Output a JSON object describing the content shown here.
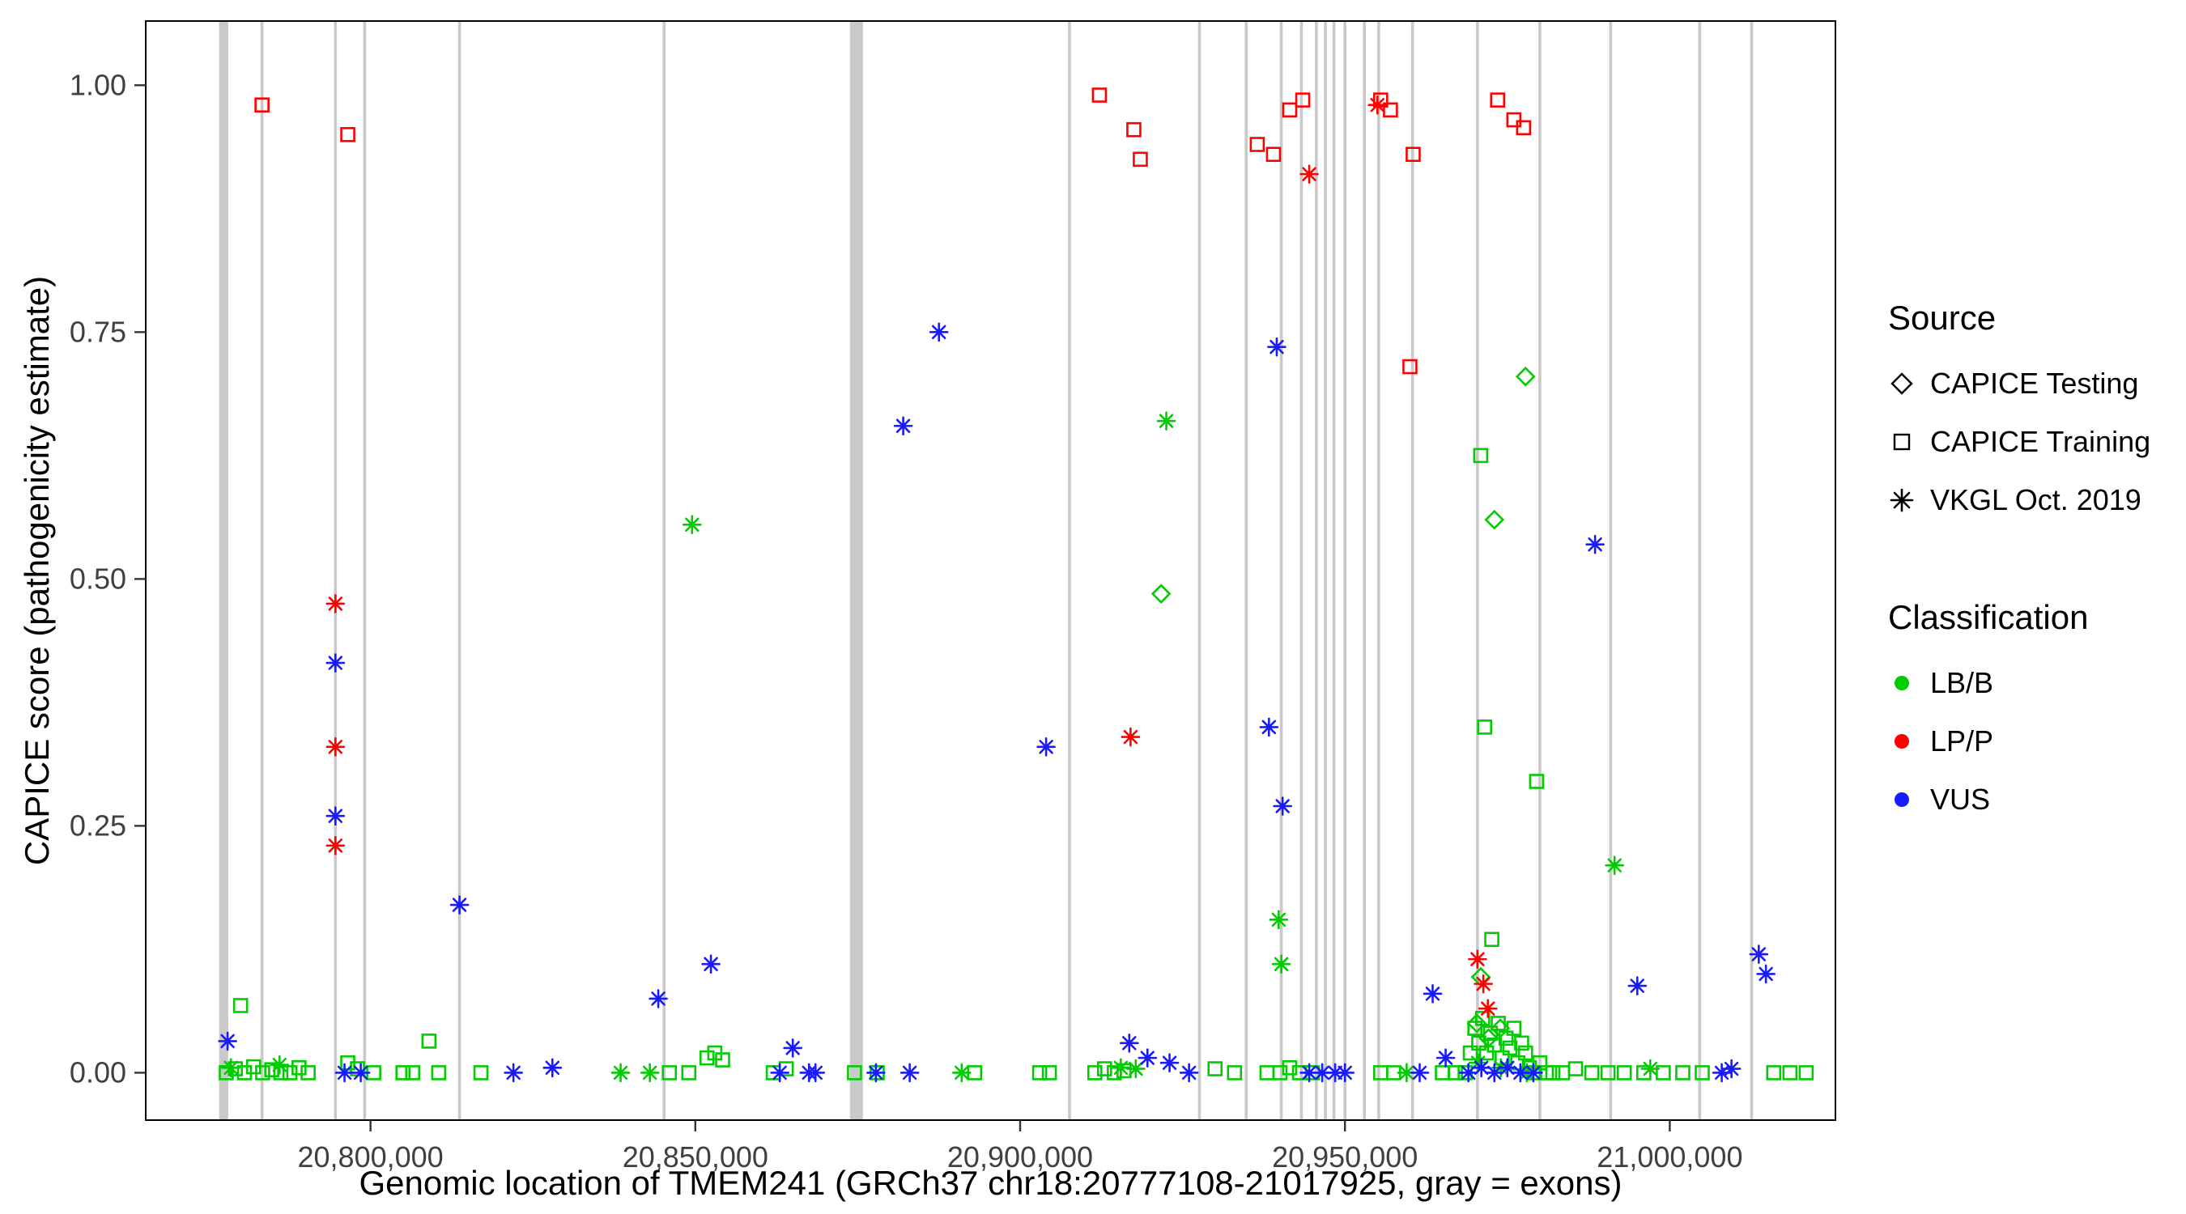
{
  "chart_data": {
    "type": "scatter",
    "title": "",
    "xlabel": "Genomic location of TMEM241 (GRCh37 chr18:20777108-21017925, gray = exons)",
    "ylabel": "CAPICE score (pathogenicity estimate)",
    "xlim": [
      20765400,
      21025500
    ],
    "ylim": [
      -0.048,
      1.065
    ],
    "grid": "off",
    "x_ticks": [
      {
        "v": 20800000,
        "label": "20,800,000"
      },
      {
        "v": 20850000,
        "label": "20,850,000"
      },
      {
        "v": 20900000,
        "label": "20,900,000"
      },
      {
        "v": 20950000,
        "label": "20,950,000"
      },
      {
        "v": 21000000,
        "label": "21,000,000"
      }
    ],
    "y_ticks": [
      {
        "v": 0.0,
        "label": "0.00"
      },
      {
        "v": 0.25,
        "label": "0.25"
      },
      {
        "v": 0.5,
        "label": "0.50"
      },
      {
        "v": 0.75,
        "label": "0.75"
      },
      {
        "v": 1.0,
        "label": "1.00"
      }
    ],
    "exon_color": "#C9C9C9",
    "exons": [
      [
        20777400,
        1400
      ],
      [
        20874800,
        2000
      ],
      [
        20783300,
        450
      ],
      [
        20794600,
        450
      ],
      [
        20799100,
        450
      ],
      [
        20813700,
        450
      ],
      [
        20845200,
        450
      ],
      [
        20907600,
        450
      ],
      [
        20927600,
        450
      ],
      [
        20934800,
        450
      ],
      [
        20940200,
        450
      ],
      [
        20943300,
        450
      ],
      [
        20945600,
        450
      ],
      [
        20947000,
        450
      ],
      [
        20948300,
        450
      ],
      [
        20950000,
        450
      ],
      [
        20953000,
        450
      ],
      [
        20955200,
        450
      ],
      [
        20960400,
        450
      ],
      [
        20970400,
        450
      ],
      [
        20980000,
        450
      ],
      [
        20990900,
        450
      ],
      [
        21004600,
        450
      ],
      [
        21012600,
        450
      ]
    ],
    "series": [
      {
        "name": "CAPICE Testing / LB/B",
        "source": "CAPICE Testing",
        "classification": "LB/B",
        "shape": "diamond",
        "color": "#00CC00",
        "points": [
          [
            20921700,
            0.485
          ],
          [
            20973000,
            0.56
          ],
          [
            20977800,
            0.705
          ],
          [
            20970900,
            0.097
          ],
          [
            20970300,
            0.05
          ],
          [
            20972100,
            0.035
          ],
          [
            20973900,
            0.045
          ]
        ]
      },
      {
        "name": "CAPICE Training / LB/B",
        "source": "CAPICE Training",
        "classification": "LB/B",
        "shape": "square",
        "color": "#00CC00",
        "points": [
          [
            20780000,
            0.068
          ],
          [
            20809000,
            0.032
          ],
          [
            20970900,
            0.625
          ],
          [
            20971500,
            0.35
          ],
          [
            20979500,
            0.295
          ],
          [
            20972600,
            0.135
          ],
          [
            20777800,
            0.0
          ],
          [
            20779200,
            0.004
          ],
          [
            20780600,
            0.0
          ],
          [
            20782000,
            0.006
          ],
          [
            20783400,
            0.0
          ],
          [
            20784800,
            0.003
          ],
          [
            20786200,
            0.0
          ],
          [
            20787600,
            0.0
          ],
          [
            20789000,
            0.005
          ],
          [
            20790400,
            0.0
          ],
          [
            20796500,
            0.01
          ],
          [
            20798000,
            0.004
          ],
          [
            20800500,
            0.0
          ],
          [
            20805000,
            0.0
          ],
          [
            20806500,
            0.0
          ],
          [
            20810500,
            0.0
          ],
          [
            20817000,
            0.0
          ],
          [
            20846000,
            0.0
          ],
          [
            20849000,
            0.0
          ],
          [
            20851800,
            0.015
          ],
          [
            20853000,
            0.02
          ],
          [
            20854200,
            0.013
          ],
          [
            20862000,
            0.0
          ],
          [
            20864000,
            0.004
          ],
          [
            20874500,
            0.0
          ],
          [
            20878000,
            0.0
          ],
          [
            20893000,
            0.0
          ],
          [
            20903000,
            0.0
          ],
          [
            20904500,
            0.0
          ],
          [
            20911500,
            0.0
          ],
          [
            20913000,
            0.004
          ],
          [
            20914500,
            0.0
          ],
          [
            20916000,
            0.002
          ],
          [
            20930000,
            0.004
          ],
          [
            20933000,
            0.0
          ],
          [
            20938000,
            0.0
          ],
          [
            20940000,
            0.0
          ],
          [
            20941500,
            0.005
          ],
          [
            20943000,
            0.0
          ],
          [
            20945000,
            0.0
          ],
          [
            20955500,
            0.0
          ],
          [
            20957500,
            0.0
          ],
          [
            20965000,
            0.0
          ],
          [
            20967000,
            0.0
          ],
          [
            20968500,
            0.0
          ],
          [
            20969300,
            0.02
          ],
          [
            20970000,
            0.045
          ],
          [
            20970600,
            0.03
          ],
          [
            20971200,
            0.055
          ],
          [
            20971800,
            0.02
          ],
          [
            20972400,
            0.04
          ],
          [
            20973000,
            0.028
          ],
          [
            20973600,
            0.05
          ],
          [
            20974200,
            0.015
          ],
          [
            20974800,
            0.035
          ],
          [
            20975400,
            0.025
          ],
          [
            20976000,
            0.045
          ],
          [
            20976600,
            0.01
          ],
          [
            20977200,
            0.03
          ],
          [
            20977800,
            0.02
          ],
          [
            20978400,
            0.005
          ],
          [
            20979200,
            0.0
          ],
          [
            20980000,
            0.01
          ],
          [
            20981000,
            0.0
          ],
          [
            20982000,
            0.0
          ],
          [
            20983500,
            0.0
          ],
          [
            20985500,
            0.004
          ],
          [
            20988000,
            0.0
          ],
          [
            20990500,
            0.0
          ],
          [
            20993000,
            0.0
          ],
          [
            20996000,
            0.0
          ],
          [
            20999000,
            0.0
          ],
          [
            21002000,
            0.0
          ],
          [
            21005000,
            0.0
          ],
          [
            21016000,
            0.0
          ],
          [
            21018500,
            0.0
          ],
          [
            21021000,
            0.0
          ]
        ]
      },
      {
        "name": "CAPICE Training / LP/P",
        "source": "CAPICE Training",
        "classification": "LP/P",
        "shape": "square",
        "color": "#FF0000",
        "points": [
          [
            20783300,
            0.98
          ],
          [
            20796500,
            0.95
          ],
          [
            20912200,
            0.99
          ],
          [
            20917500,
            0.955
          ],
          [
            20918500,
            0.925
          ],
          [
            20936500,
            0.94
          ],
          [
            20939000,
            0.93
          ],
          [
            20941500,
            0.975
          ],
          [
            20943500,
            0.985
          ],
          [
            20955500,
            0.985
          ],
          [
            20957000,
            0.975
          ],
          [
            20960500,
            0.93
          ],
          [
            20960000,
            0.715
          ],
          [
            20973500,
            0.985
          ],
          [
            20976000,
            0.965
          ],
          [
            20977500,
            0.957
          ]
        ]
      },
      {
        "name": "VKGL Oct. 2019 / LB/B",
        "source": "VKGL Oct. 2019",
        "classification": "LB/B",
        "shape": "asterisk",
        "color": "#00CC00",
        "points": [
          [
            20849500,
            0.555
          ],
          [
            20922500,
            0.66
          ],
          [
            20939800,
            0.155
          ],
          [
            20940200,
            0.11
          ],
          [
            20991500,
            0.21
          ],
          [
            20778500,
            0.005
          ],
          [
            20786000,
            0.008
          ],
          [
            20838500,
            0.0
          ],
          [
            20843000,
            0.0
          ],
          [
            20891000,
            0.0
          ],
          [
            20915500,
            0.005
          ],
          [
            20917800,
            0.004
          ],
          [
            20959500,
            0.0
          ],
          [
            20970500,
            0.01
          ],
          [
            20974000,
            0.005
          ],
          [
            20978000,
            0.0
          ],
          [
            20997000,
            0.004
          ]
        ]
      },
      {
        "name": "VKGL Oct. 2019 / LP/P",
        "source": "VKGL Oct. 2019",
        "classification": "LP/P",
        "shape": "asterisk",
        "color": "#FF0000",
        "points": [
          [
            20794600,
            0.475
          ],
          [
            20794600,
            0.33
          ],
          [
            20794600,
            0.23
          ],
          [
            20917000,
            0.34
          ],
          [
            20944500,
            0.91
          ],
          [
            20955000,
            0.98
          ],
          [
            20970400,
            0.115
          ],
          [
            20971300,
            0.09
          ],
          [
            20972000,
            0.065
          ]
        ]
      },
      {
        "name": "VKGL Oct. 2019 / VUS",
        "source": "VKGL Oct. 2019",
        "classification": "VUS",
        "shape": "asterisk",
        "color": "#1A1AFF",
        "points": [
          [
            20778000,
            0.032
          ],
          [
            20794600,
            0.415
          ],
          [
            20794600,
            0.26
          ],
          [
            20796000,
            0.0
          ],
          [
            20798500,
            0.0
          ],
          [
            20813700,
            0.17
          ],
          [
            20822000,
            0.0
          ],
          [
            20828000,
            0.005
          ],
          [
            20844300,
            0.075
          ],
          [
            20852400,
            0.11
          ],
          [
            20863000,
            0.0
          ],
          [
            20865000,
            0.025
          ],
          [
            20867500,
            0.0
          ],
          [
            20868500,
            0.0
          ],
          [
            20877800,
            0.0
          ],
          [
            20882000,
            0.655
          ],
          [
            20883000,
            0.0
          ],
          [
            20887500,
            0.75
          ],
          [
            20904000,
            0.33
          ],
          [
            20916800,
            0.03
          ],
          [
            20919600,
            0.015
          ],
          [
            20923000,
            0.01
          ],
          [
            20926000,
            0.0
          ],
          [
            20938300,
            0.35
          ],
          [
            20939500,
            0.735
          ],
          [
            20940400,
            0.27
          ],
          [
            20944500,
            0.0
          ],
          [
            20946500,
            0.0
          ],
          [
            20948500,
            0.0
          ],
          [
            20950000,
            0.0
          ],
          [
            20961500,
            0.0
          ],
          [
            20963500,
            0.08
          ],
          [
            20965500,
            0.015
          ],
          [
            20969000,
            0.0
          ],
          [
            20971000,
            0.005
          ],
          [
            20973000,
            0.0
          ],
          [
            20975000,
            0.005
          ],
          [
            20977000,
            0.0
          ],
          [
            20979000,
            0.0
          ],
          [
            20988500,
            0.535
          ],
          [
            20995000,
            0.088
          ],
          [
            21008000,
            0.0
          ],
          [
            21009500,
            0.004
          ],
          [
            21013700,
            0.12
          ],
          [
            21014800,
            0.1
          ]
        ]
      }
    ],
    "legend": {
      "source_title": "Source",
      "source_items": [
        {
          "label": "CAPICE Testing",
          "shape": "diamond"
        },
        {
          "label": "CAPICE Training",
          "shape": "square"
        },
        {
          "label": "VKGL Oct. 2019",
          "shape": "asterisk"
        }
      ],
      "classification_title": "Classification",
      "classification_items": [
        {
          "label": "LB/B",
          "color": "#00CC00"
        },
        {
          "label": "LP/P",
          "color": "#FF0000"
        },
        {
          "label": "VUS",
          "color": "#1A1AFF"
        }
      ],
      "key_color": "#000000"
    }
  }
}
